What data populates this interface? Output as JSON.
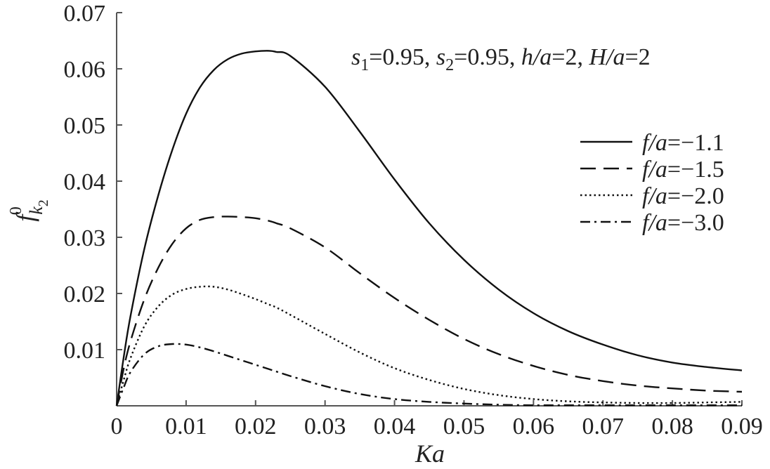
{
  "chart_data": {
    "type": "line",
    "xlabel": "Ka",
    "ylabel": "f k2 0",
    "xlim": [
      0,
      0.09
    ],
    "ylim": [
      0,
      0.07
    ],
    "x_ticks": [
      "0",
      "0.01",
      "0.02",
      "0.03",
      "0.04",
      "0.05",
      "0.06",
      "0.07",
      "0.08",
      "0.09"
    ],
    "y_ticks": [
      "0.01",
      "0.02",
      "0.03",
      "0.04",
      "0.05",
      "0.06",
      "0.07"
    ],
    "annotation": "s1=0.95, s2=0.95, h/a=2, H/a=2",
    "legend_position": "right",
    "x": [
      0,
      0.001,
      0.002,
      0.004,
      0.006,
      0.008,
      0.01,
      0.012,
      0.014,
      0.016,
      0.018,
      0.02,
      0.022,
      0.023,
      0.025,
      0.03,
      0.035,
      0.04,
      0.045,
      0.05,
      0.055,
      0.06,
      0.065,
      0.07,
      0.075,
      0.08,
      0.085,
      0.09
    ],
    "series": [
      {
        "name": "f/a=−1.1",
        "style": "solid",
        "values": [
          0,
          0.0085,
          0.016,
          0.028,
          0.0375,
          0.0455,
          0.052,
          0.0567,
          0.0598,
          0.0617,
          0.0627,
          0.0631,
          0.0632,
          0.063,
          0.0623,
          0.0568,
          0.0488,
          0.0403,
          0.0325,
          0.026,
          0.0207,
          0.0165,
          0.0133,
          0.0109,
          0.009,
          0.0077,
          0.0069,
          0.0063
        ]
      },
      {
        "name": "f/a=−1.5",
        "style": "dashed",
        "values": [
          0,
          0.0065,
          0.0115,
          0.019,
          0.0246,
          0.0288,
          0.0316,
          0.0331,
          0.0336,
          0.0337,
          0.0336,
          0.0334,
          0.0329,
          0.0325,
          0.0316,
          0.0282,
          0.0236,
          0.0192,
          0.0153,
          0.0119,
          0.0092,
          0.0071,
          0.0055,
          0.0044,
          0.0036,
          0.0031,
          0.0027,
          0.0025
        ]
      },
      {
        "name": "f/a=−2.0",
        "style": "dotted",
        "values": [
          0,
          0.0045,
          0.0085,
          0.0142,
          0.0177,
          0.0198,
          0.0208,
          0.0212,
          0.0212,
          0.0207,
          0.0199,
          0.019,
          0.018,
          0.0175,
          0.0162,
          0.0128,
          0.0095,
          0.0067,
          0.0046,
          0.003,
          0.0019,
          0.0012,
          0.0008,
          0.0006,
          0.0005,
          0.0005,
          0.0006,
          0.0007
        ]
      },
      {
        "name": "f/a=−3.0",
        "style": "dashdot",
        "values": [
          0,
          0.0032,
          0.006,
          0.0092,
          0.0106,
          0.011,
          0.0109,
          0.0104,
          0.0097,
          0.0089,
          0.0081,
          0.0073,
          0.0065,
          0.0061,
          0.0053,
          0.0035,
          0.0021,
          0.0012,
          0.0007,
          0.0004,
          0.0002,
          0.0001,
          0.0001,
          0.0001,
          0.0001,
          0.0001,
          0.0001,
          0.0001
        ]
      }
    ]
  }
}
